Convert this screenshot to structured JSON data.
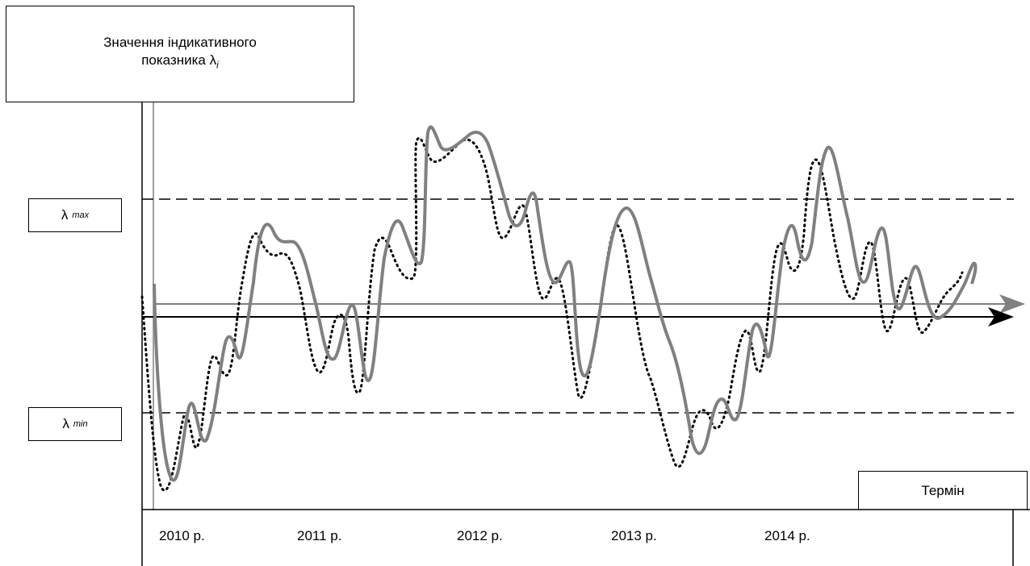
{
  "title": {
    "line1": "Значення індикативного",
    "line2_prefix": "показника λ",
    "line2_sub": "i"
  },
  "lambda_max": {
    "symbol": "λ",
    "sub": "max"
  },
  "lambda_min": {
    "symbol": "λ",
    "sub": "min"
  },
  "term_label": "Термін",
  "years": [
    "2010 р.",
    "2011 р.",
    "2012 р.",
    "2013 р.",
    "2014 р."
  ],
  "colors": {
    "solid_curve": "#808080",
    "gray_axis": "#808080",
    "black_axis": "#000000",
    "dotted_curve": "#000000"
  }
}
